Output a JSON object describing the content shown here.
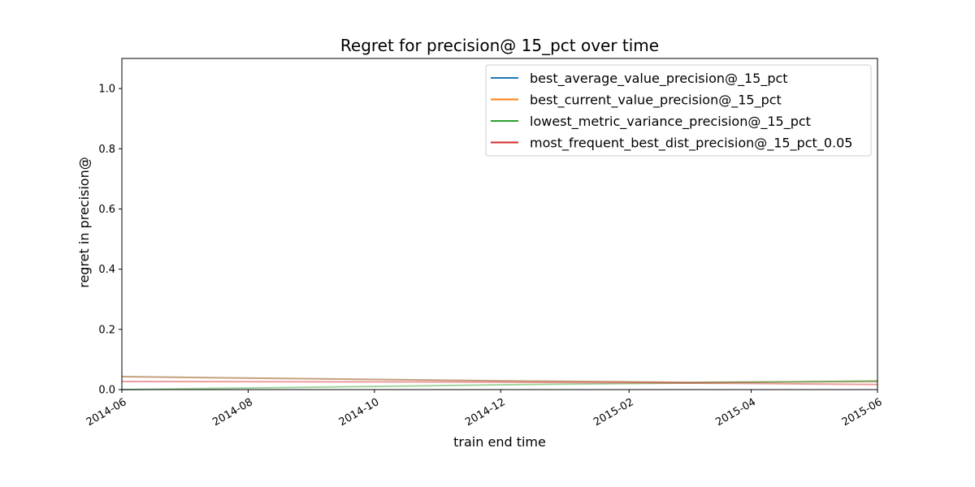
{
  "chart_data": {
    "type": "line",
    "title": "Regret for precision@ 15_pct over time",
    "xlabel": "train end time",
    "ylabel": "regret in precision@",
    "xlim": [
      "2014-06-01",
      "2015-06-01"
    ],
    "ylim": [
      0,
      1.1
    ],
    "x_ticks": [
      "2014-06",
      "2014-08",
      "2014-10",
      "2014-12",
      "2015-02",
      "2015-04",
      "2015-06"
    ],
    "y_ticks": [
      "0.0",
      "0.2",
      "0.4",
      "0.6",
      "0.8",
      "1.0"
    ],
    "grid": false,
    "legend_position": "top-right",
    "x": [
      "2014-06-01",
      "2014-09-01",
      "2014-12-01",
      "2015-03-01",
      "2015-06-01"
    ],
    "series": [
      {
        "name": "best_average_value_precision@_15_pct",
        "color": "#1f77b4",
        "values": [
          0.043,
          0.036,
          0.029,
          0.024,
          0.027
        ]
      },
      {
        "name": "best_current_value_precision@_15_pct",
        "color": "#ff7f0e",
        "values": [
          0.043,
          0.036,
          0.029,
          0.024,
          0.027
        ]
      },
      {
        "name": "lowest_metric_variance_precision@_15_pct",
        "color": "#2ca02c",
        "values": [
          0.0,
          0.008,
          0.016,
          0.022,
          0.029
        ]
      },
      {
        "name": "most_frequent_best_dist_precision@_15_pct_0.05",
        "color": "#d62728",
        "values": [
          0.027,
          0.026,
          0.025,
          0.022,
          0.017
        ]
      }
    ]
  }
}
